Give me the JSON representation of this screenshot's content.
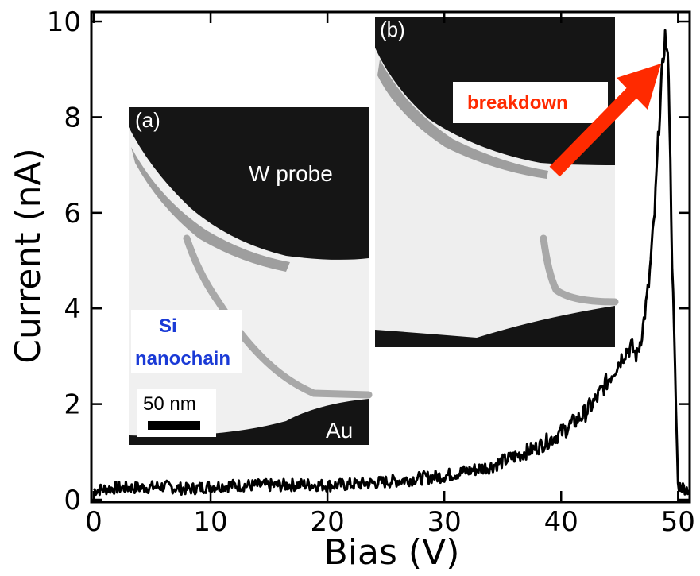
{
  "chart_data": {
    "type": "line",
    "xlabel": "Bias (V)",
    "ylabel": "Current (nA)",
    "xlim": [
      0,
      51
    ],
    "ylim": [
      0,
      10.2
    ],
    "xticks": [
      0,
      10,
      20,
      30,
      40,
      50
    ],
    "yticks": [
      0,
      2,
      4,
      6,
      8,
      10
    ],
    "grid": false,
    "series": [
      {
        "color": "#000000",
        "x": [
          0,
          2,
          4,
          6,
          8,
          10,
          12,
          14,
          16,
          18,
          20,
          22,
          24,
          26,
          28,
          30,
          31,
          32,
          33,
          34,
          35,
          36,
          37,
          38,
          39,
          40,
          41,
          42,
          43,
          44,
          45,
          45.5,
          46,
          46.5,
          47,
          47.5,
          48,
          48.3,
          48.6,
          48.9,
          49.2,
          49.5,
          50,
          51
        ],
        "y": [
          0.2,
          0.25,
          0.25,
          0.28,
          0.22,
          0.28,
          0.3,
          0.3,
          0.3,
          0.32,
          0.3,
          0.32,
          0.35,
          0.4,
          0.45,
          0.5,
          0.55,
          0.6,
          0.65,
          0.7,
          0.8,
          0.9,
          1.0,
          1.1,
          1.25,
          1.4,
          1.6,
          1.8,
          2.1,
          2.5,
          2.9,
          3.1,
          3.2,
          3.0,
          3.6,
          4.5,
          6.0,
          7.5,
          8.8,
          9.7,
          9.0,
          5.0,
          0.3,
          0.2
        ]
      }
    ],
    "insets": [
      {
        "panel": "(a)",
        "labels": [
          "W probe",
          "Au",
          "Si",
          "nanochain"
        ],
        "scale_bar": "50 nm"
      },
      {
        "panel": "(b)",
        "labels": [
          "breakdown"
        ]
      }
    ],
    "colors": {
      "line": "#000000",
      "annotation_blue": "#1a3ad6",
      "annotation_red": "#ff2a00"
    }
  }
}
